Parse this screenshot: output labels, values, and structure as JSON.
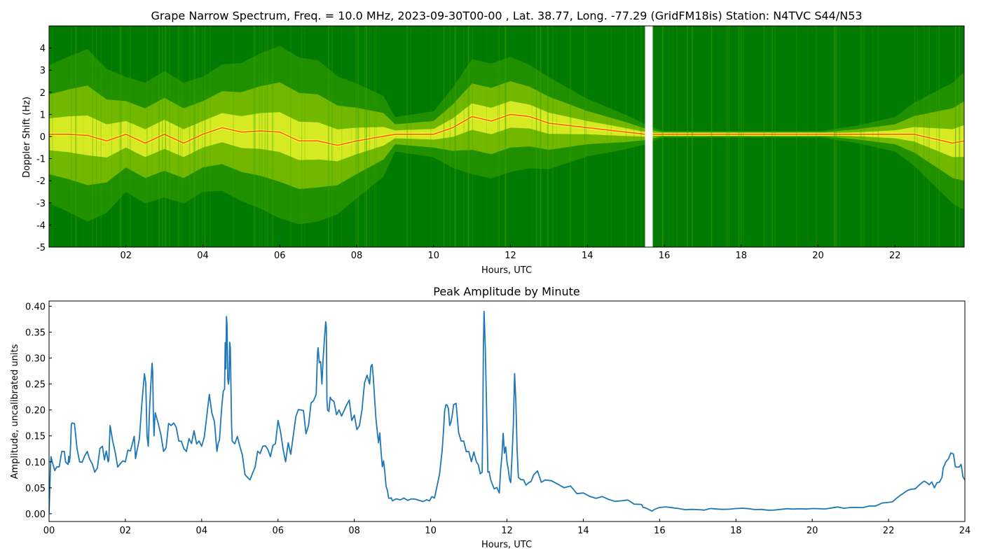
{
  "chart_data": [
    {
      "type": "heatmap",
      "title": "Grape Narrow Spectrum, Freq. = 10.0 MHz, 2023-09-30T00-00 , Lat.  38.77, Long. -77.29 (GridFM18is) Station: N4TVC S44/N53",
      "xlabel": "Hours, UTC",
      "ylabel": "Doppler Shift (Hz)",
      "xlim": [
        0,
        23.8
      ],
      "ylim": [
        -5,
        5
      ],
      "xticks": [
        "02",
        "04",
        "06",
        "08",
        "10",
        "12",
        "14",
        "16",
        "18",
        "20",
        "22"
      ],
      "xtick_values": [
        2,
        4,
        6,
        8,
        10,
        12,
        14,
        16,
        18,
        20,
        22
      ],
      "yticks": [
        "-5",
        "-4",
        "-3",
        "-2",
        "-1",
        "0",
        "1",
        "2",
        "3",
        "4"
      ],
      "ytick_values": [
        -5,
        -4,
        -3,
        -2,
        -1,
        0,
        1,
        2,
        3,
        4
      ],
      "colors": {
        "background": "#007a00",
        "low": "#3aa300",
        "mid": "#d8e800",
        "high": "#ffff30",
        "peak": "#ff3000",
        "gap": "#ffffff"
      },
      "data_gap_hours": [
        15.5,
        15.7
      ],
      "carrier_trace": {
        "x": [
          0,
          0.5,
          1,
          1.5,
          2,
          2.5,
          3,
          3.5,
          4,
          4.5,
          5,
          5.5,
          6,
          6.5,
          7,
          7.5,
          8,
          8.5,
          9,
          9.5,
          10,
          10.5,
          11,
          11.5,
          12,
          12.5,
          13,
          14,
          15,
          15.5,
          16,
          18,
          20,
          22,
          22.5,
          23,
          23.5,
          23.8
        ],
        "y": [
          0.1,
          0.1,
          0.05,
          -0.2,
          0.1,
          -0.3,
          0.1,
          -0.3,
          0.1,
          0.4,
          0.2,
          0.25,
          0.2,
          -0.2,
          -0.2,
          -0.4,
          -0.2,
          -0.05,
          0.1,
          0.1,
          0.1,
          0.4,
          0.9,
          0.7,
          1.0,
          0.9,
          0.6,
          0.4,
          0.2,
          0.1,
          0.1,
          0.1,
          0.1,
          0.1,
          0.1,
          -0.1,
          -0.3,
          -0.2
        ]
      },
      "spread_hz": {
        "x": [
          0,
          1,
          2,
          3,
          4,
          5,
          6,
          7,
          8,
          8.7,
          9,
          10,
          11,
          12,
          13,
          14,
          15,
          16,
          18,
          20,
          21,
          22,
          23,
          23.8
        ],
        "y": [
          1.2,
          1.5,
          1.0,
          1.1,
          1.0,
          1.2,
          1.5,
          1.4,
          1.0,
          0.7,
          0.3,
          0.4,
          1.0,
          1.0,
          0.8,
          0.5,
          0.3,
          0.05,
          0.05,
          0.05,
          0.15,
          0.3,
          0.8,
          1.2
        ]
      }
    },
    {
      "type": "line",
      "title": "Peak Amplitude by Minute",
      "xlabel": "Hours, UTC",
      "ylabel": "Amplitude, uncalibrated units",
      "xlim": [
        0,
        24
      ],
      "ylim": [
        -0.015,
        0.41
      ],
      "xticks": [
        "00",
        "02",
        "04",
        "06",
        "08",
        "10",
        "12",
        "14",
        "16",
        "18",
        "20",
        "22",
        "24"
      ],
      "xtick_values": [
        0,
        2,
        4,
        6,
        8,
        10,
        12,
        14,
        16,
        18,
        20,
        22,
        24
      ],
      "yticks": [
        "0.00",
        "0.05",
        "0.10",
        "0.15",
        "0.20",
        "0.25",
        "0.30",
        "0.35",
        "0.40"
      ],
      "ytick_values": [
        0,
        0.05,
        0.1,
        0.15,
        0.2,
        0.25,
        0.3,
        0.35,
        0.4
      ],
      "color": "#1f77b4",
      "x": [
        0,
        0.05,
        0.2,
        0.4,
        0.5,
        0.55,
        0.6,
        0.8,
        1.0,
        1.2,
        1.4,
        1.55,
        1.6,
        1.8,
        2.0,
        2.2,
        2.3,
        2.5,
        2.6,
        2.7,
        2.75,
        2.8,
        3.0,
        3.2,
        3.4,
        3.6,
        3.8,
        4.0,
        4.2,
        4.4,
        4.5,
        4.6,
        4.65,
        4.7,
        4.75,
        4.8,
        5.0,
        5.2,
        5.4,
        5.6,
        5.8,
        6.0,
        6.2,
        6.4,
        6.6,
        6.8,
        7.0,
        7.05,
        7.15,
        7.25,
        7.3,
        7.4,
        7.6,
        7.8,
        8.0,
        8.2,
        8.4,
        8.5,
        8.6,
        8.7,
        8.8,
        8.9,
        9.0,
        9.3,
        9.6,
        9.9,
        10.1,
        10.3,
        10.4,
        10.5,
        10.6,
        10.8,
        11.0,
        11.2,
        11.35,
        11.4,
        11.5,
        11.6,
        11.8,
        11.9,
        12.0,
        12.1,
        12.2,
        12.3,
        12.5,
        12.7,
        13.0,
        13.5,
        14.0,
        14.5,
        15.0,
        15.5,
        15.6,
        15.8,
        16.0,
        16.5,
        17.0,
        17.5,
        18.0,
        18.5,
        19.0,
        19.5,
        20.0,
        20.5,
        21.0,
        21.5,
        22.0,
        22.3,
        22.5,
        22.8,
        23.0,
        23.2,
        23.4,
        23.5,
        23.7,
        23.85,
        24.0
      ],
      "y": [
        0.0,
        0.11,
        0.09,
        0.12,
        0.095,
        0.11,
        0.175,
        0.1,
        0.12,
        0.08,
        0.13,
        0.1,
        0.17,
        0.09,
        0.1,
        0.14,
        0.12,
        0.27,
        0.13,
        0.29,
        0.15,
        0.19,
        0.12,
        0.17,
        0.14,
        0.12,
        0.16,
        0.13,
        0.23,
        0.12,
        0.18,
        0.24,
        0.38,
        0.25,
        0.32,
        0.14,
        0.13,
        0.07,
        0.09,
        0.13,
        0.11,
        0.18,
        0.1,
        0.15,
        0.2,
        0.17,
        0.23,
        0.32,
        0.25,
        0.37,
        0.2,
        0.22,
        0.2,
        0.21,
        0.19,
        0.2,
        0.25,
        0.26,
        0.16,
        0.12,
        0.08,
        0.03,
        0.025,
        0.03,
        0.028,
        0.027,
        0.03,
        0.12,
        0.21,
        0.17,
        0.21,
        0.14,
        0.12,
        0.1,
        0.08,
        0.39,
        0.08,
        0.06,
        0.04,
        0.155,
        0.1,
        0.06,
        0.27,
        0.07,
        0.055,
        0.075,
        0.065,
        0.05,
        0.04,
        0.033,
        0.025,
        0.018,
        0.012,
        0.005,
        0.012,
        0.01,
        0.008,
        0.009,
        0.01,
        0.008,
        0.007,
        0.009,
        0.01,
        0.011,
        0.012,
        0.015,
        0.022,
        0.035,
        0.045,
        0.055,
        0.06,
        0.05,
        0.07,
        0.1,
        0.115,
        0.09,
        0.065
      ]
    }
  ]
}
